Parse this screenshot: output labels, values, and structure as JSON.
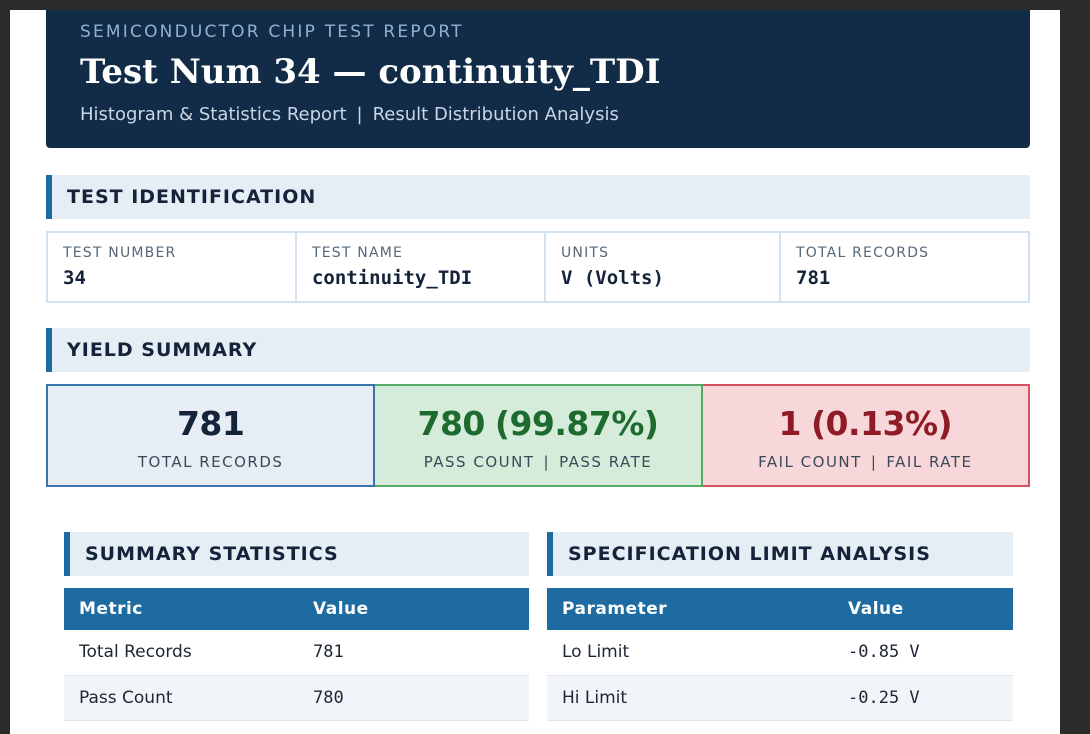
{
  "header": {
    "kicker": "SEMICONDUCTOR CHIP TEST REPORT",
    "title": "Test Num 34 — continuity_TDI",
    "subtitle_left": "Histogram & Statistics Report",
    "subtitle_sep": "|",
    "subtitle_right": "Result Distribution Analysis"
  },
  "test_identification": {
    "heading": "TEST IDENTIFICATION",
    "cells": [
      {
        "label": "TEST NUMBER",
        "value": "34"
      },
      {
        "label": "TEST NAME",
        "value": "continuity_TDI"
      },
      {
        "label": "UNITS",
        "value": "V (Volts)"
      },
      {
        "label": "TOTAL RECORDS",
        "value": "781"
      }
    ]
  },
  "yield_summary": {
    "heading": "YIELD SUMMARY",
    "total": {
      "value": "781",
      "label": "TOTAL RECORDS"
    },
    "pass": {
      "value": "780",
      "pct": "(99.87%)",
      "label_a": "PASS COUNT",
      "sep": "|",
      "label_b": "PASS RATE"
    },
    "fail": {
      "value": "1",
      "pct": "(0.13%)",
      "label_a": "FAIL COUNT",
      "sep": "|",
      "label_b": "FAIL RATE"
    }
  },
  "summary_statistics": {
    "heading": "SUMMARY STATISTICS",
    "columns": [
      "Metric",
      "Value"
    ],
    "rows": [
      [
        "Total Records",
        "781"
      ],
      [
        "Pass Count",
        "780"
      ]
    ]
  },
  "spec_limit_analysis": {
    "heading": "SPECIFICATION LIMIT ANALYSIS",
    "columns": [
      "Parameter",
      "Value"
    ],
    "rows": [
      [
        "Lo Limit",
        "-0.85 V"
      ],
      [
        "Hi Limit",
        "-0.25 V"
      ]
    ]
  },
  "colors": {
    "header_bg": "#122c47",
    "accent": "#1d6ba1",
    "pass_green": "#1e6b30",
    "fail_red": "#8e1b25"
  }
}
